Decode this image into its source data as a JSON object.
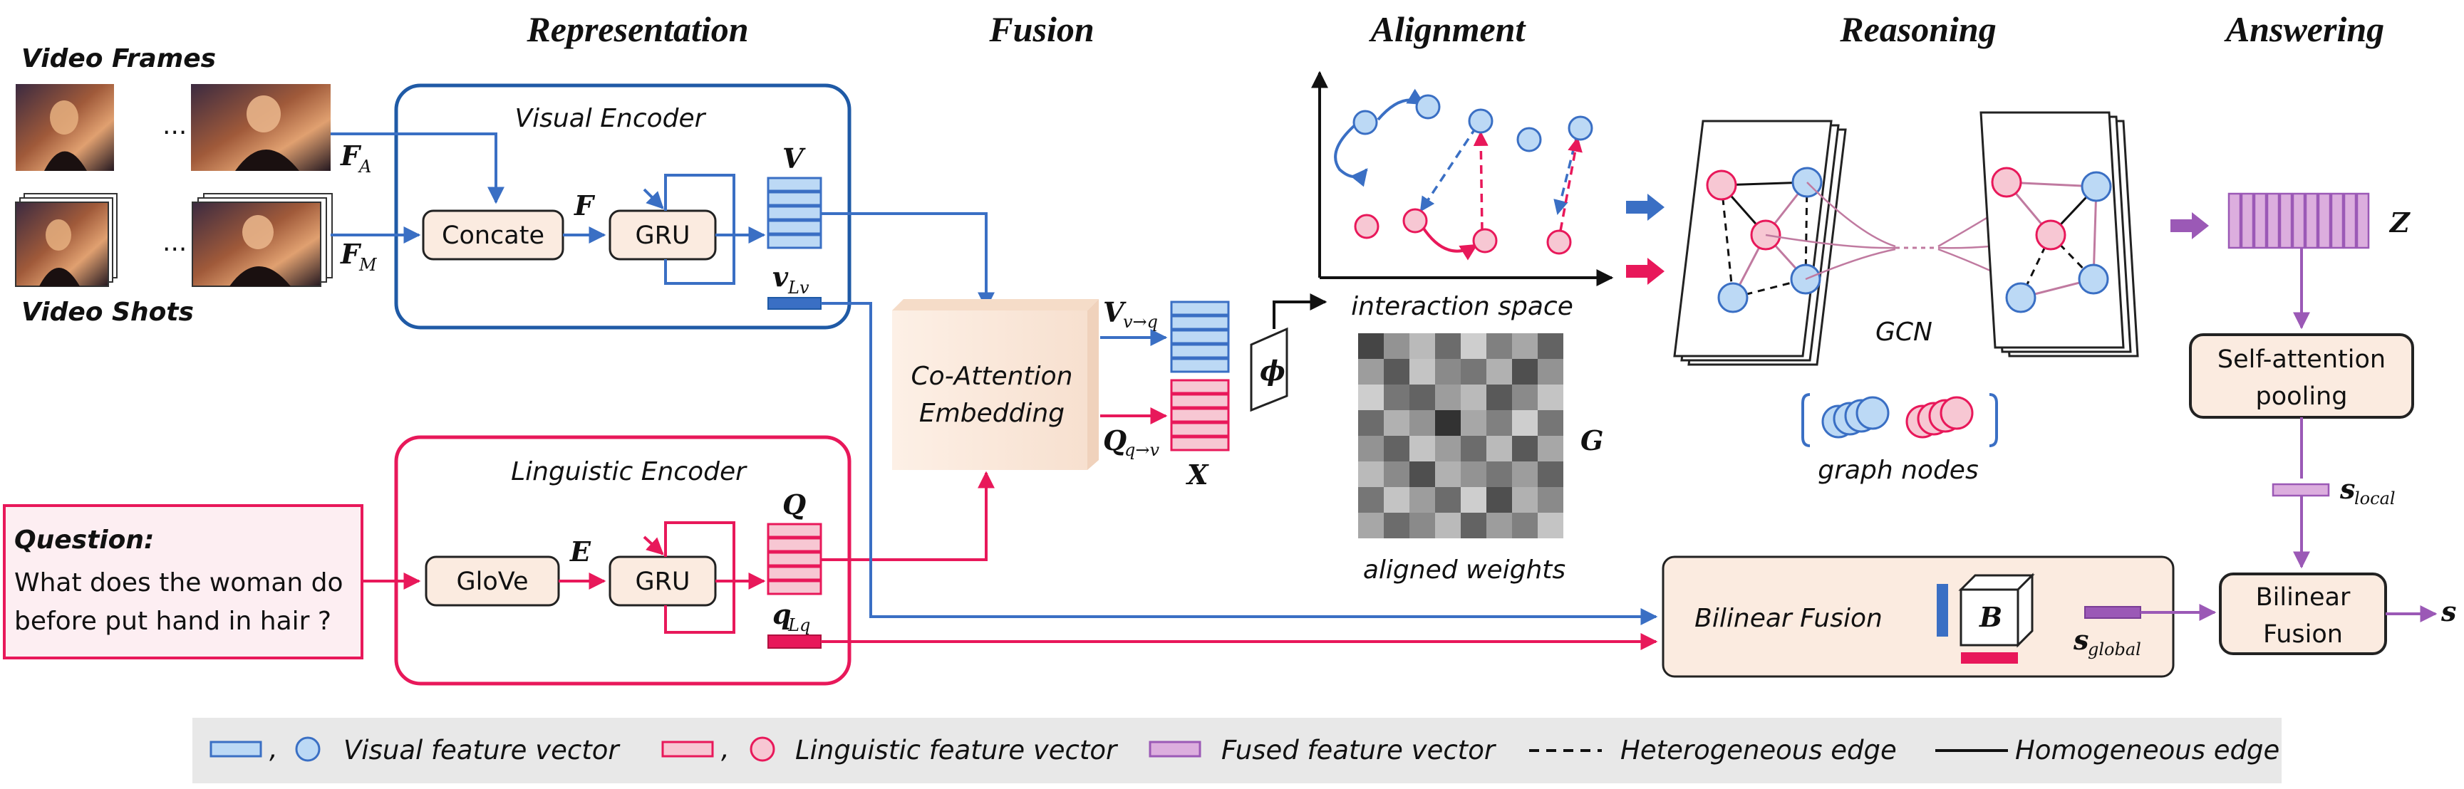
{
  "stages": {
    "representation": "Representation",
    "fusion": "Fusion",
    "alignment": "Alignment",
    "reasoning": "Reasoning",
    "answering": "Answering"
  },
  "inputs": {
    "video_frames": "Video Frames",
    "video_shots": "Video Shots",
    "ellipsis": "...",
    "question_title": "Question:",
    "question_line1": "What does the woman do",
    "question_line2": "before put hand in hair ?"
  },
  "encoders": {
    "visual_title": "Visual Encoder",
    "linguistic_title": "Linguistic Encoder",
    "concate": "Concate",
    "gru": "GRU",
    "glove": "GloVe"
  },
  "symbols": {
    "FA": "F",
    "FA_sub": "A",
    "FM": "F",
    "FM_sub": "M",
    "F": "F",
    "V": "V",
    "vL": "v",
    "vL_sub": "Lv",
    "E": "E",
    "Q": "Q",
    "qL": "q",
    "qL_sub": "Lq",
    "Vvq": "V",
    "Vvq_sub": "v→q",
    "Qqv": "Q",
    "Qqv_sub": "q→v",
    "X": "X",
    "phi": "ϕ",
    "G": "G",
    "Z": "Z",
    "s_local": "s",
    "s_local_sub": "local",
    "s_global": "s",
    "s_global_sub": "global",
    "s": "s",
    "B": "B"
  },
  "fusion": {
    "coatt_line1": "Co-Attention",
    "coatt_line2": "Embedding"
  },
  "alignment": {
    "interaction_space": "interaction space",
    "aligned_weights": "aligned weights"
  },
  "reasoning": {
    "gcn": "GCN",
    "graph_nodes": "graph nodes"
  },
  "answering": {
    "self_att_line1": "Self-attention",
    "self_att_line2": "pooling",
    "bilinear_line1": "Bilinear",
    "bilinear_line2": "Fusion",
    "bilinear_fusion_big": "Bilinear Fusion"
  },
  "legend": {
    "visual": "Visual feature vector",
    "linguistic": "Linguistic feature vector",
    "fused": "Fused feature vector",
    "hetero": "Heterogeneous edge",
    "homo": "Homogeneous edge",
    "comma": ","
  },
  "colors": {
    "visual": "#3a6fc4",
    "visual_fill": "#bcd9f5",
    "linguistic": "#e8185a",
    "linguistic_fill": "#f7c7d3",
    "fused": "#9b59b6",
    "fused_fill": "#dcaede",
    "panel": "#fbebe0"
  },
  "heatmap_values": [
    [
      0.15,
      0.55,
      0.75,
      0.35,
      0.85,
      0.45,
      0.65,
      0.3
    ],
    [
      0.6,
      0.25,
      0.8,
      0.5,
      0.4,
      0.7,
      0.2,
      0.55
    ],
    [
      0.85,
      0.4,
      0.3,
      0.6,
      0.75,
      0.25,
      0.5,
      0.8
    ],
    [
      0.35,
      0.7,
      0.55,
      0.05,
      0.65,
      0.45,
      0.85,
      0.4
    ],
    [
      0.55,
      0.3,
      0.8,
      0.6,
      0.35,
      0.75,
      0.25,
      0.65
    ],
    [
      0.75,
      0.5,
      0.2,
      0.7,
      0.55,
      0.4,
      0.6,
      0.3
    ],
    [
      0.4,
      0.8,
      0.6,
      0.35,
      0.85,
      0.2,
      0.7,
      0.5
    ],
    [
      0.65,
      0.35,
      0.5,
      0.75,
      0.3,
      0.6,
      0.45,
      0.8
    ]
  ]
}
